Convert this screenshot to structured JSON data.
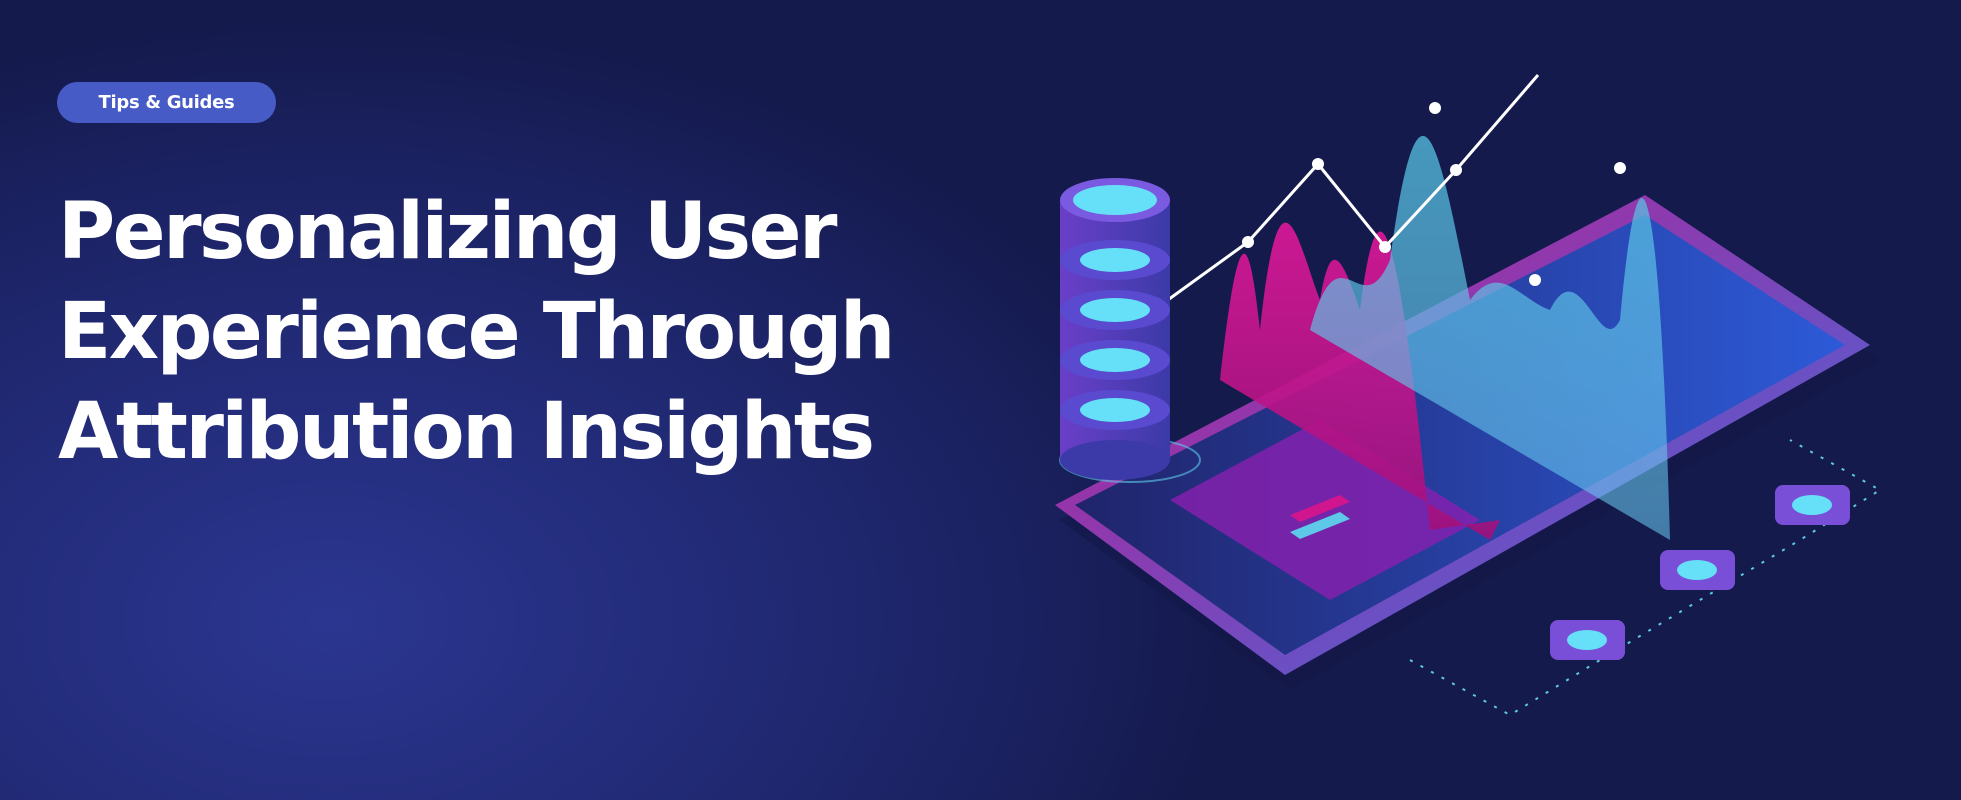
{
  "category_badge": "Tips & Guides",
  "title_lines": [
    "Personalizing User",
    "Experience Through",
    "Attribution Insights"
  ],
  "colors": {
    "background": "#1f2870",
    "badge": "#475bc6",
    "accent_magenta": "#d0168f",
    "accent_cyan": "#5ec8e8"
  },
  "illustration": "isometric-analytics-tablet-with-database"
}
